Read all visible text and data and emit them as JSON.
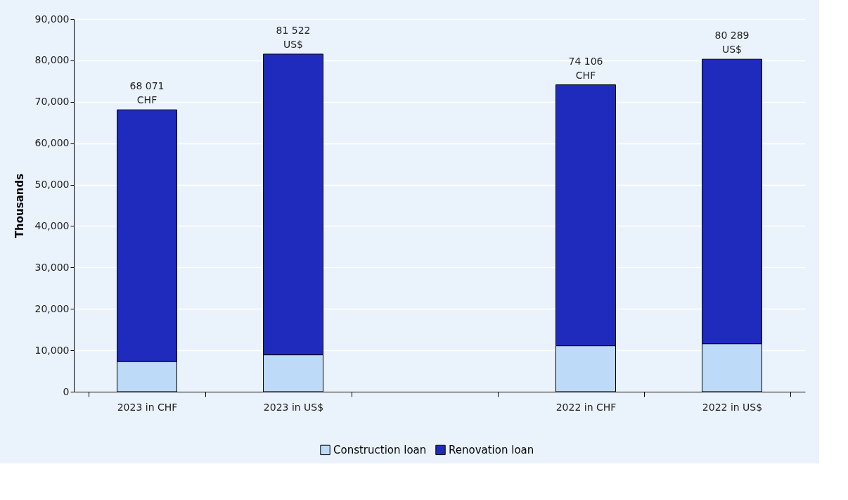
{
  "chart_data": {
    "type": "bar",
    "ylabel": "Thousands",
    "stacked": true,
    "categories": [
      "2023 in CHF",
      "2023 in US$",
      null,
      "2022 in CHF",
      "2022 in US$"
    ],
    "series": [
      {
        "name": "Construction loan",
        "color": "#bddbf8",
        "values": [
          7300,
          8900,
          null,
          11100,
          11600
        ]
      },
      {
        "name": "Renovation loan",
        "color": "#1f2bbd",
        "values": [
          60771,
          72622,
          null,
          63006,
          68689
        ]
      }
    ],
    "totals": [
      "68 071\nCHF",
      "81 522\nUS$",
      null,
      "74 106\nCHF",
      "80 289\nUS$"
    ],
    "ylim": [
      0,
      90000
    ],
    "yticks": [
      0,
      {
        "value": 10000,
        "label": "10,000"
      },
      {
        "value": 20000,
        "label": "20,000"
      },
      {
        "value": 30000,
        "label": "30,000"
      },
      {
        "value": 40000,
        "label": "40,000"
      },
      {
        "value": 50000,
        "label": "50,000"
      },
      {
        "value": 60000,
        "label": "60,000"
      },
      {
        "value": 70000,
        "label": "70,000"
      },
      {
        "value": 80000,
        "label": "80,000"
      },
      {
        "value": 90000,
        "label": "90,000"
      }
    ],
    "grid": "y",
    "legend": "bottom"
  }
}
